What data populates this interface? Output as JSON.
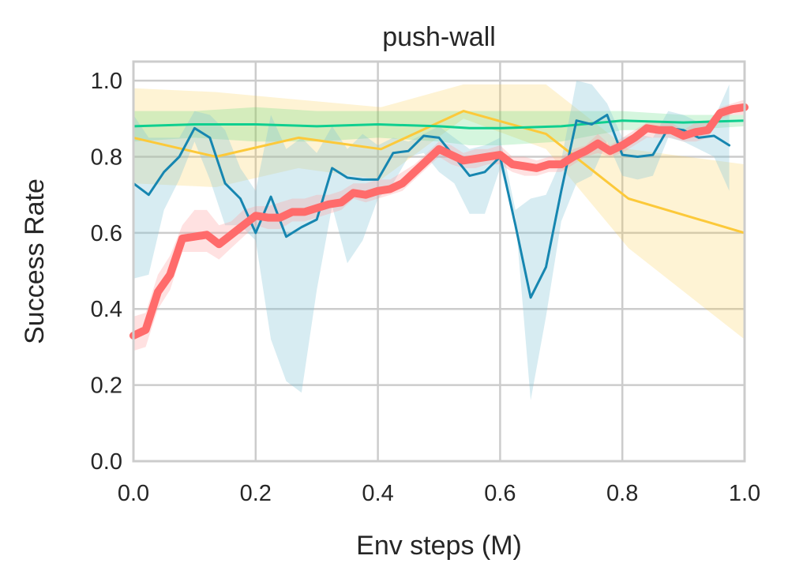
{
  "chart_data": {
    "type": "line",
    "title": "push-wall",
    "xlabel": "Env steps (M)",
    "ylabel": "Success Rate",
    "xlim": [
      0.0,
      1.0
    ],
    "ylim": [
      0.0,
      1.05
    ],
    "xticks": [
      "0.0",
      "0.2",
      "0.4",
      "0.6",
      "0.8",
      "1.0"
    ],
    "yticks": [
      "0.0",
      "0.2",
      "0.4",
      "0.6",
      "0.8",
      "1.0"
    ],
    "grid": true,
    "legend": "none",
    "series": [
      {
        "color": "#fcc93a",
        "band_color": "#fcc93a",
        "line_width": 3,
        "band_opacity": 0.22,
        "x": [
          0.0,
          0.135,
          0.27,
          0.405,
          0.54,
          0.675,
          0.81,
          1.0
        ],
        "y": [
          0.85,
          0.8,
          0.85,
          0.82,
          0.92,
          0.86,
          0.69,
          0.6
        ],
        "lower": [
          0.73,
          0.72,
          0.77,
          0.74,
          0.9,
          0.82,
          0.56,
          0.32
        ],
        "upper": [
          0.98,
          0.97,
          0.95,
          0.93,
          0.99,
          0.99,
          0.82,
          0.78
        ]
      },
      {
        "color": "#0fcf8f",
        "band_color": "#3fd66b",
        "line_width": 3,
        "band_opacity": 0.22,
        "x": [
          0.0,
          0.1,
          0.2,
          0.3,
          0.4,
          0.5,
          0.55,
          0.6,
          0.7,
          0.8,
          0.9,
          1.0
        ],
        "y": [
          0.88,
          0.885,
          0.885,
          0.88,
          0.885,
          0.88,
          0.875,
          0.875,
          0.88,
          0.895,
          0.89,
          0.895
        ],
        "lower": [
          0.84,
          0.85,
          0.84,
          0.84,
          0.85,
          0.84,
          0.83,
          0.83,
          0.84,
          0.87,
          0.87,
          0.88
        ],
        "upper": [
          0.92,
          0.92,
          0.93,
          0.92,
          0.92,
          0.92,
          0.92,
          0.92,
          0.92,
          0.92,
          0.91,
          0.91
        ]
      },
      {
        "color": "#1686b0",
        "band_color": "#82c3d8",
        "line_width": 3,
        "band_opacity": 0.32,
        "x": [
          0.0,
          0.025,
          0.05,
          0.075,
          0.1,
          0.125,
          0.15,
          0.175,
          0.2,
          0.225,
          0.25,
          0.275,
          0.3,
          0.325,
          0.35,
          0.375,
          0.4,
          0.425,
          0.45,
          0.475,
          0.5,
          0.525,
          0.55,
          0.575,
          0.6,
          0.625,
          0.65,
          0.675,
          0.7,
          0.725,
          0.75,
          0.775,
          0.8,
          0.825,
          0.85,
          0.875,
          0.9,
          0.925,
          0.95,
          0.975
        ],
        "y": [
          0.73,
          0.7,
          0.76,
          0.8,
          0.875,
          0.85,
          0.73,
          0.69,
          0.6,
          0.695,
          0.59,
          0.615,
          0.635,
          0.77,
          0.745,
          0.74,
          0.74,
          0.81,
          0.815,
          0.855,
          0.85,
          0.8,
          0.75,
          0.76,
          0.8,
          0.62,
          0.43,
          0.51,
          0.71,
          0.895,
          0.885,
          0.91,
          0.805,
          0.8,
          0.805,
          0.875,
          0.87,
          0.85,
          0.855,
          0.83
        ],
        "lower": [
          0.48,
          0.49,
          0.66,
          0.74,
          0.84,
          0.74,
          0.62,
          0.62,
          0.58,
          0.32,
          0.21,
          0.18,
          0.45,
          0.67,
          0.52,
          0.58,
          0.69,
          0.73,
          0.8,
          0.81,
          0.76,
          0.73,
          0.65,
          0.65,
          0.77,
          0.64,
          0.16,
          0.38,
          0.63,
          0.73,
          0.75,
          0.84,
          0.75,
          0.74,
          0.75,
          0.85,
          0.84,
          0.82,
          0.8,
          0.71
        ],
        "upper": [
          0.91,
          0.85,
          0.85,
          0.85,
          0.92,
          0.91,
          0.87,
          0.77,
          0.71,
          0.91,
          0.82,
          0.85,
          0.81,
          0.88,
          0.82,
          0.86,
          0.83,
          0.85,
          0.84,
          0.86,
          0.88,
          0.85,
          0.82,
          0.83,
          0.85,
          0.66,
          0.69,
          0.7,
          0.79,
          1.0,
          0.99,
          0.94,
          0.85,
          0.86,
          0.85,
          0.92,
          0.91,
          0.89,
          0.9,
          0.99
        ]
      },
      {
        "color": "#ff6b6b",
        "band_color": "#ff9a9a",
        "line_width": 10,
        "band_opacity": 0.3,
        "x": [
          0.0,
          0.02,
          0.04,
          0.06,
          0.08,
          0.1,
          0.12,
          0.14,
          0.16,
          0.18,
          0.2,
          0.22,
          0.24,
          0.26,
          0.28,
          0.3,
          0.32,
          0.34,
          0.36,
          0.38,
          0.4,
          0.42,
          0.44,
          0.46,
          0.48,
          0.5,
          0.52,
          0.54,
          0.56,
          0.58,
          0.6,
          0.62,
          0.64,
          0.66,
          0.68,
          0.7,
          0.72,
          0.74,
          0.76,
          0.78,
          0.8,
          0.82,
          0.84,
          0.86,
          0.88,
          0.9,
          0.92,
          0.94,
          0.96,
          0.98,
          1.0
        ],
        "y": [
          0.33,
          0.345,
          0.445,
          0.49,
          0.585,
          0.59,
          0.595,
          0.57,
          0.595,
          0.62,
          0.645,
          0.64,
          0.64,
          0.655,
          0.655,
          0.665,
          0.675,
          0.68,
          0.705,
          0.7,
          0.71,
          0.715,
          0.73,
          0.76,
          0.79,
          0.82,
          0.805,
          0.79,
          0.795,
          0.8,
          0.805,
          0.78,
          0.775,
          0.77,
          0.78,
          0.78,
          0.8,
          0.815,
          0.835,
          0.815,
          0.83,
          0.85,
          0.875,
          0.87,
          0.87,
          0.855,
          0.865,
          0.87,
          0.915,
          0.925,
          0.93
        ],
        "lower": [
          0.29,
          0.3,
          0.4,
          0.45,
          0.55,
          0.55,
          0.55,
          0.53,
          0.56,
          0.59,
          0.62,
          0.61,
          0.61,
          0.63,
          0.63,
          0.64,
          0.65,
          0.66,
          0.69,
          0.68,
          0.69,
          0.7,
          0.71,
          0.74,
          0.77,
          0.8,
          0.78,
          0.77,
          0.77,
          0.78,
          0.78,
          0.76,
          0.75,
          0.75,
          0.76,
          0.76,
          0.78,
          0.8,
          0.81,
          0.8,
          0.81,
          0.83,
          0.85,
          0.85,
          0.85,
          0.84,
          0.84,
          0.85,
          0.9,
          0.91,
          0.91
        ],
        "upper": [
          0.38,
          0.39,
          0.49,
          0.54,
          0.62,
          0.66,
          0.66,
          0.62,
          0.63,
          0.66,
          0.67,
          0.67,
          0.68,
          0.69,
          0.69,
          0.7,
          0.7,
          0.71,
          0.73,
          0.73,
          0.74,
          0.74,
          0.76,
          0.78,
          0.81,
          0.84,
          0.83,
          0.81,
          0.82,
          0.82,
          0.83,
          0.8,
          0.8,
          0.79,
          0.8,
          0.8,
          0.82,
          0.83,
          0.86,
          0.83,
          0.85,
          0.87,
          0.89,
          0.89,
          0.89,
          0.87,
          0.89,
          0.89,
          0.93,
          0.94,
          0.95
        ]
      }
    ]
  }
}
